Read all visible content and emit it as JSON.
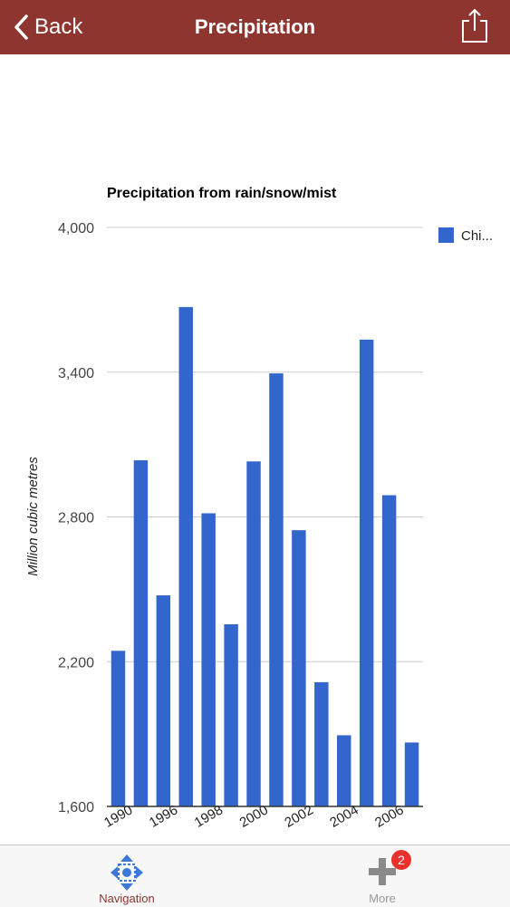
{
  "header": {
    "back_label": "Back",
    "title": "Precipitation",
    "share_icon": "share-icon",
    "background": "#8e3530"
  },
  "chart_data": {
    "type": "bar",
    "title": "Precipitation from rain/snow/mist",
    "xlabel": "",
    "ylabel": "Million cubic metres",
    "ylim": [
      1600,
      4000
    ],
    "yticks": [
      1600,
      2200,
      2800,
      3400,
      4000
    ],
    "ytick_labels": [
      "1,600",
      "2,200",
      "2,800",
      "3,400",
      "4,000"
    ],
    "xtick_labels": [
      "1990",
      "1996",
      "1998",
      "2000",
      "2002",
      "2004",
      "2006"
    ],
    "grid": true,
    "legend_position": "right",
    "color": "#3366cc",
    "series": [
      {
        "name": "Chi...",
        "values": [
          2245,
          3035,
          2475,
          3670,
          2815,
          2355,
          3030,
          3395,
          2745,
          2115,
          1895,
          3535,
          2890,
          1865
        ]
      }
    ]
  },
  "tabbar": {
    "navigation_label": "Navigation",
    "navigation_icon": "navigation-icon",
    "more_label": "More",
    "more_icon": "plus-icon",
    "more_badge": "2",
    "active_color": "#8e3530"
  }
}
